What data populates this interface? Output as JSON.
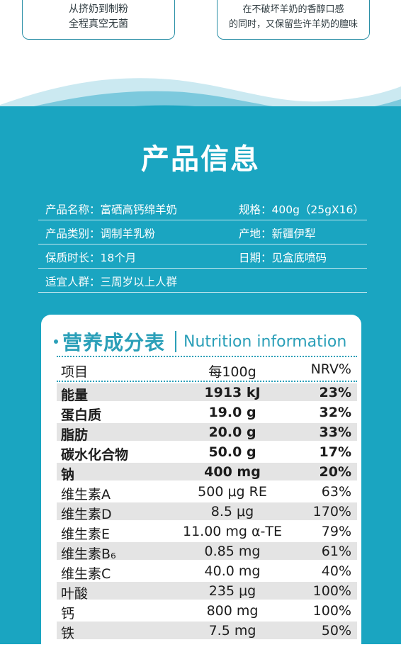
{
  "top_cards": {
    "left": {
      "line1": "从挤奶到制粉",
      "line2": "全程真空无菌"
    },
    "right": {
      "line1": "在不破坏羊奶的香醇口感",
      "line2": "的同时，又保留些许羊奶的膻味"
    }
  },
  "product_info": {
    "title": "产品信息",
    "rows": [
      {
        "left": "产品名称：富硒高钙绵羊奶",
        "right": "规格：400g（25gX16）"
      },
      {
        "left": "产品类别：调制羊乳粉",
        "right": "产地：新疆伊犁"
      },
      {
        "left": "保质时长：18个月",
        "right": "日期：见盒底喷码"
      },
      {
        "left": "适宜人群：三周岁以上人群",
        "right": ""
      }
    ]
  },
  "nutrition": {
    "title_cn": "营养成分表",
    "title_en": "Nutrition information",
    "header": {
      "item": "项目",
      "per": "每100g",
      "nrv": "NRV%"
    },
    "rows": [
      {
        "item": "能量",
        "value": "1913 kJ",
        "nrv": "23%"
      },
      {
        "item": "蛋白质",
        "value": "19.0 g",
        "nrv": "32%"
      },
      {
        "item": "脂肪",
        "value": "20.0 g",
        "nrv": "33%"
      },
      {
        "item": "碳水化合物",
        "value": "50.0 g",
        "nrv": "17%"
      },
      {
        "item": "钠",
        "value": "400 mg",
        "nrv": "20%"
      },
      {
        "item": "维生素A",
        "value": "500 μg RE",
        "nrv": "63%"
      },
      {
        "item": "维生素D",
        "value": "8.5 μg",
        "nrv": "170%"
      },
      {
        "item": "维生素E",
        "value": "11.00 mg α-TE",
        "nrv": "79%"
      },
      {
        "item": "维生素B₆",
        "value": "0.85 mg",
        "nrv": "61%"
      },
      {
        "item": "维生素C",
        "value": "40.0 mg",
        "nrv": "40%"
      },
      {
        "item": "叶酸",
        "value": "235 μg",
        "nrv": "100%"
      },
      {
        "item": "钙",
        "value": "800 mg",
        "nrv": "100%"
      },
      {
        "item": "铁",
        "value": "7.5 mg",
        "nrv": "50%"
      }
    ]
  },
  "colors": {
    "teal": "#1aa5c1",
    "accent": "#2a9fb8",
    "shade": "#e4e4e4"
  }
}
